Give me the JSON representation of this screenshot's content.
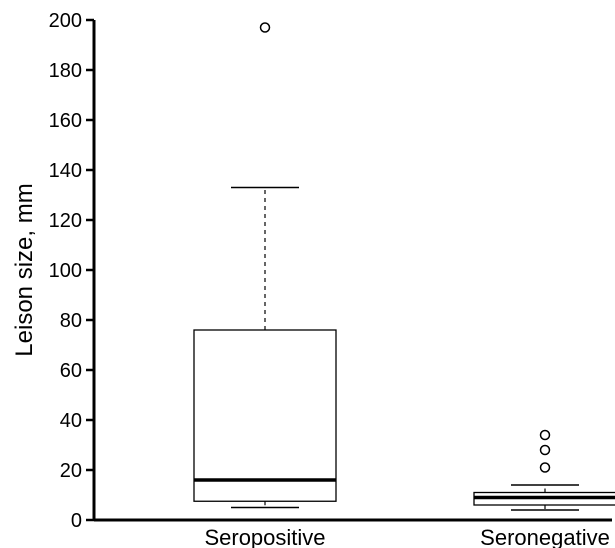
{
  "chart_data": {
    "type": "box",
    "title": "",
    "xlabel": "",
    "ylabel": "Leison size, mm",
    "ylim": [
      0,
      200
    ],
    "yticks": [
      0,
      20,
      40,
      60,
      80,
      100,
      120,
      140,
      160,
      180,
      200
    ],
    "grid": false,
    "categories": [
      "Seropositive",
      "Seronegative"
    ],
    "boxes": [
      {
        "category": "Seropositive",
        "whisker_low": 5,
        "q1": 7.5,
        "median": 16,
        "q3": 76,
        "whisker_high": 133,
        "outliers": [
          197
        ]
      },
      {
        "category": "Seronegative",
        "whisker_low": 4,
        "q1": 6,
        "median": 9,
        "q3": 11,
        "whisker_high": 14,
        "outliers": [
          21,
          28,
          34
        ]
      }
    ]
  }
}
